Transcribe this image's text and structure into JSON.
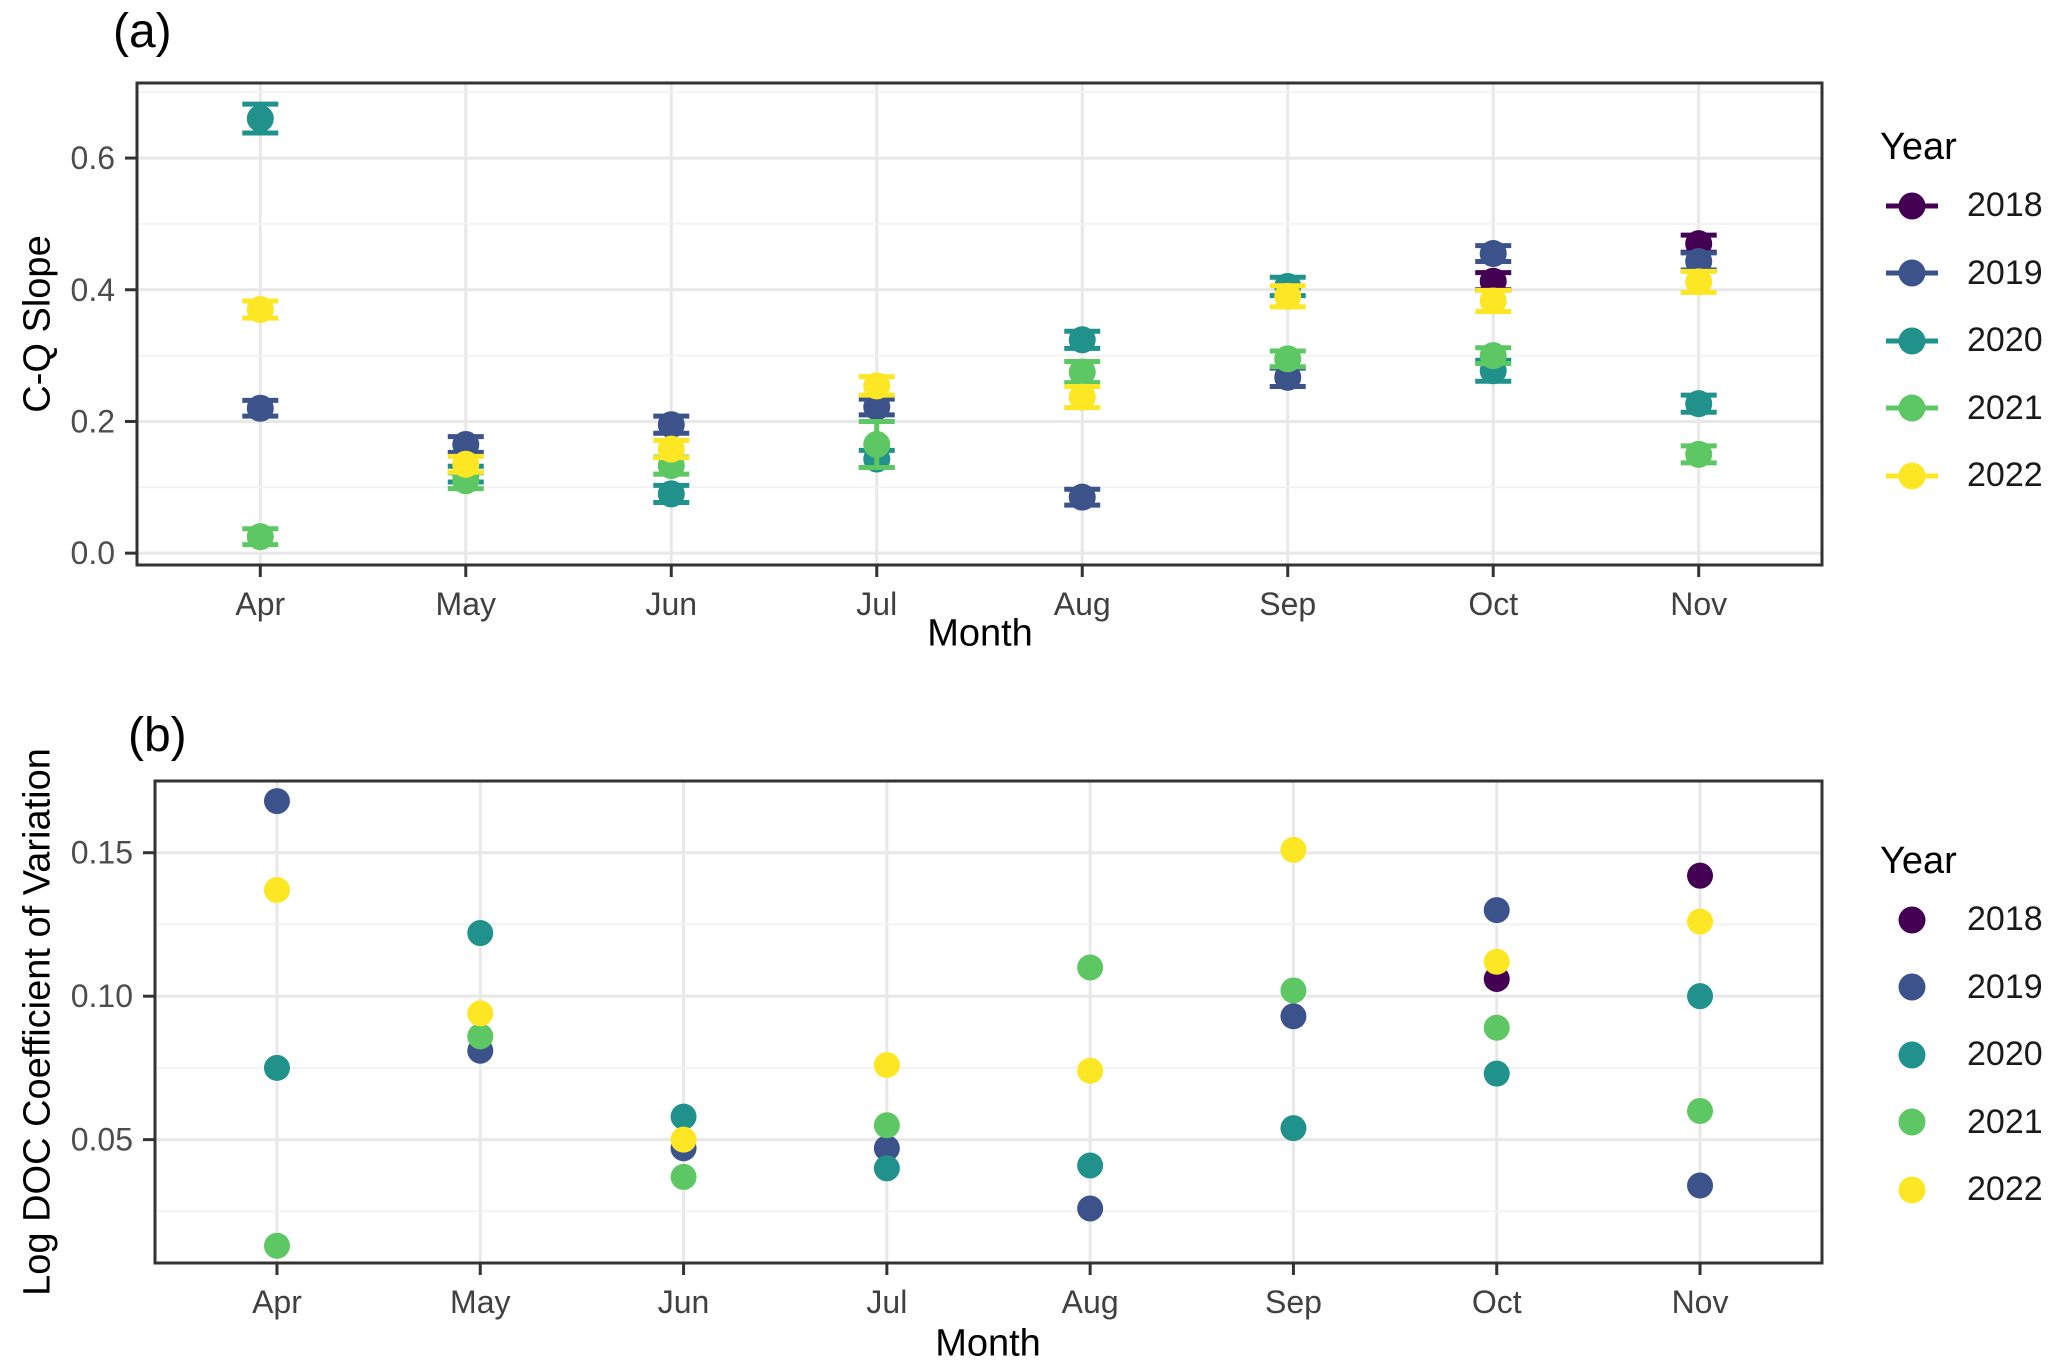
{
  "chart_data": [
    {
      "type": "scatter",
      "tag": "(a)",
      "xlabel": "Month",
      "ylabel": "C-Q Slope",
      "categories": [
        "Apr",
        "May",
        "Jun",
        "Jul",
        "Aug",
        "Sep",
        "Oct",
        "Nov"
      ],
      "ylim": [
        -0.018,
        0.714
      ],
      "yticks": [
        {
          "value": 0.0,
          "label": "0.0"
        },
        {
          "value": 0.2,
          "label": "0.2"
        },
        {
          "value": 0.4,
          "label": "0.4"
        },
        {
          "value": 0.6,
          "label": "0.6"
        }
      ],
      "yticks_minor": [
        0.1,
        0.3,
        0.5,
        0.7
      ],
      "grid": true,
      "error_bars": true,
      "legend": {
        "title": "Year",
        "position": "right",
        "key_style": "pointrange"
      },
      "series": [
        {
          "name": "2018",
          "color": "#440154",
          "values": [
            null,
            null,
            null,
            null,
            null,
            null,
            0.413,
            0.47
          ],
          "errors": [
            null,
            null,
            null,
            null,
            null,
            null,
            0.013,
            0.013
          ]
        },
        {
          "name": "2019",
          "color": "#3b528b",
          "values": [
            0.22,
            0.165,
            0.195,
            0.222,
            0.085,
            0.267,
            0.455,
            0.443
          ],
          "errors": [
            0.012,
            0.012,
            0.013,
            0.012,
            0.012,
            0.014,
            0.012,
            0.013
          ]
        },
        {
          "name": "2020",
          "color": "#21918c",
          "values": [
            0.66,
            0.12,
            0.09,
            0.143,
            0.324,
            0.405,
            0.277,
            0.227
          ],
          "errors": [
            0.022,
            0.012,
            0.013,
            0.013,
            0.013,
            0.014,
            0.016,
            0.013
          ]
        },
        {
          "name": "2021",
          "color": "#5dc863",
          "values": [
            0.025,
            0.11,
            0.133,
            0.165,
            0.275,
            0.295,
            0.3,
            0.15
          ],
          "errors": [
            0.012,
            0.012,
            0.013,
            0.035,
            0.016,
            0.012,
            0.012,
            0.013
          ]
        },
        {
          "name": "2022",
          "color": "#fde725",
          "values": [
            0.37,
            0.135,
            0.158,
            0.254,
            0.237,
            0.39,
            0.383,
            0.412
          ],
          "errors": [
            0.013,
            0.012,
            0.013,
            0.014,
            0.016,
            0.016,
            0.016,
            0.016
          ]
        }
      ]
    },
    {
      "type": "scatter",
      "tag": "(b)",
      "xlabel": "Month",
      "ylabel": "Log DOC Coefficient of Variation",
      "categories": [
        "Apr",
        "May",
        "Jun",
        "Jul",
        "Aug",
        "Sep",
        "Oct",
        "Nov"
      ],
      "ylim": [
        0.007,
        0.175
      ],
      "yticks": [
        {
          "value": 0.05,
          "label": "0.05"
        },
        {
          "value": 0.1,
          "label": "0.10"
        },
        {
          "value": 0.15,
          "label": "0.15"
        }
      ],
      "yticks_minor": [
        0.025,
        0.075,
        0.125,
        0.175
      ],
      "grid": true,
      "error_bars": false,
      "legend": {
        "title": "Year",
        "position": "right",
        "key_style": "point"
      },
      "series": [
        {
          "name": "2018",
          "color": "#440154",
          "values": [
            null,
            null,
            null,
            null,
            null,
            null,
            0.106,
            0.142
          ]
        },
        {
          "name": "2019",
          "color": "#3b528b",
          "values": [
            0.168,
            0.081,
            0.047,
            0.047,
            0.026,
            0.093,
            0.13,
            0.034
          ]
        },
        {
          "name": "2020",
          "color": "#21918c",
          "values": [
            0.075,
            0.122,
            0.058,
            0.04,
            0.041,
            0.054,
            0.073,
            0.1
          ]
        },
        {
          "name": "2021",
          "color": "#5dc863",
          "values": [
            0.013,
            0.086,
            0.037,
            0.055,
            0.11,
            0.102,
            0.089,
            0.06
          ]
        },
        {
          "name": "2022",
          "color": "#fde725",
          "values": [
            0.137,
            0.094,
            0.05,
            0.076,
            0.074,
            0.151,
            0.112,
            0.126
          ]
        }
      ]
    }
  ],
  "style": {
    "grid_major_color": "#e8e8e8",
    "grid_minor_color": "#f2f2f2",
    "border_color": "#333333",
    "tick_color": "#333333",
    "tick_label_color": "#4d4d4d"
  }
}
